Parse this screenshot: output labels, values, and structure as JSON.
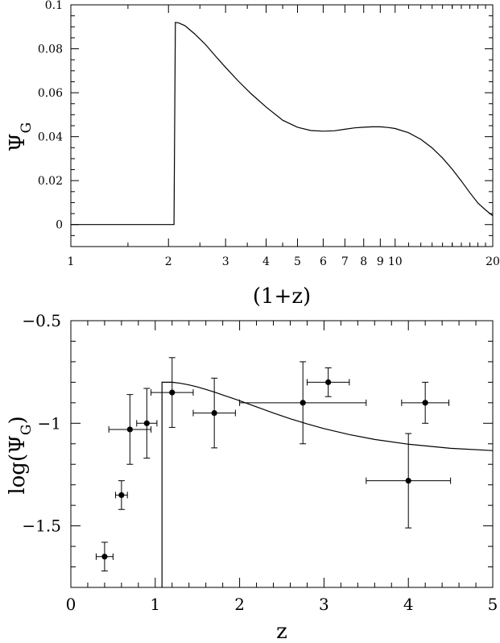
{
  "chart_data": [
    {
      "type": "line",
      "xscale": "log",
      "xlabel": "(1+z)",
      "ylabel_main": "Ψ",
      "ylabel_sub": "G",
      "xlim": [
        1,
        20
      ],
      "ylim": [
        -0.01,
        0.1
      ],
      "xticks_major": [
        1,
        2,
        3,
        4,
        5,
        6,
        7,
        8,
        9,
        10,
        20
      ],
      "xtick_labels": [
        "1",
        "2",
        "3",
        "4",
        "5",
        "6",
        "7",
        "8",
        "9",
        "10",
        "20"
      ],
      "yticks": [
        0,
        0.02,
        0.04,
        0.06,
        0.08,
        0.1
      ],
      "ytick_labels": [
        "0",
        "0.02",
        "0.04",
        "0.06",
        "0.08",
        "0.1"
      ],
      "series": [
        {
          "x": [
            1.0,
            2.08,
            2.1,
            2.15,
            2.25,
            2.4,
            2.6,
            2.8,
            3.0,
            3.3,
            3.6,
            4.0,
            4.5,
            5.0,
            5.5,
            6.0,
            6.5,
            7.0,
            7.5,
            8.0,
            8.5,
            9.0,
            9.5,
            10.0,
            11.0,
            12.0,
            13.0,
            14.0,
            15.0,
            16.0,
            17.0,
            18.0,
            19.0,
            20.0
          ],
          "y": [
            0.0,
            0.0,
            0.092,
            0.0918,
            0.0905,
            0.087,
            0.082,
            0.0765,
            0.0715,
            0.065,
            0.0595,
            0.0535,
            0.0475,
            0.0443,
            0.0428,
            0.0425,
            0.0427,
            0.0434,
            0.044,
            0.0443,
            0.0445,
            0.0445,
            0.0442,
            0.0437,
            0.0418,
            0.0388,
            0.0349,
            0.0303,
            0.0252,
            0.0198,
            0.0145,
            0.0098,
            0.0067,
            0.004
          ]
        }
      ]
    },
    {
      "type": "scatter",
      "xlabel": "z",
      "ylabel_main": "log(Ψ",
      "ylabel_sub": "G",
      "ylabel_close": ")",
      "xlim": [
        0,
        5
      ],
      "ylim": [
        -1.8,
        -0.5
      ],
      "xticks": [
        0,
        1,
        2,
        3,
        4,
        5
      ],
      "xtick_labels": [
        "0",
        "1",
        "2",
        "3",
        "4",
        "5"
      ],
      "yticks": [
        -0.5,
        -1,
        -1.5
      ],
      "ytick_labels": [
        "−0.5",
        "−1",
        "−1.5"
      ],
      "points": [
        {
          "x": 0.4,
          "y": -1.65,
          "xerr": [
            0.1,
            0.1
          ],
          "yerr": [
            0.07,
            0.07
          ]
        },
        {
          "x": 0.6,
          "y": -1.35,
          "xerr": [
            0.07,
            0.07
          ],
          "yerr": [
            0.07,
            0.07
          ]
        },
        {
          "x": 0.7,
          "y": -1.03,
          "xerr": [
            0.25,
            0.25
          ],
          "yerr": [
            0.17,
            0.17
          ]
        },
        {
          "x": 0.9,
          "y": -1.0,
          "xerr": [
            0.12,
            0.12
          ],
          "yerr": [
            0.17,
            0.17
          ]
        },
        {
          "x": 1.2,
          "y": -0.85,
          "xerr": [
            0.25,
            0.25
          ],
          "yerr": [
            0.17,
            0.17
          ]
        },
        {
          "x": 1.7,
          "y": -0.95,
          "xerr": [
            0.25,
            0.25
          ],
          "yerr": [
            0.17,
            0.17
          ]
        },
        {
          "x": 2.75,
          "y": -0.9,
          "xerr": [
            0.75,
            0.75
          ],
          "yerr": [
            0.2,
            0.2
          ]
        },
        {
          "x": 3.05,
          "y": -0.8,
          "xerr": [
            0.25,
            0.25
          ],
          "yerr": [
            0.07,
            0.07
          ]
        },
        {
          "x": 4.0,
          "y": -1.28,
          "xerr": [
            0.5,
            0.5
          ],
          "yerr": [
            0.23,
            0.23
          ]
        },
        {
          "x": 4.2,
          "y": -0.9,
          "xerr": [
            0.28,
            0.28
          ],
          "yerr": [
            0.1,
            0.1
          ]
        }
      ],
      "series": [
        {
          "x": [
            1.08,
            1.08,
            1.1,
            1.2,
            1.3,
            1.4,
            1.5,
            1.6,
            1.7,
            1.8,
            1.9,
            2.0,
            2.2,
            2.4,
            2.6,
            2.8,
            3.0,
            3.3,
            3.6,
            4.0,
            4.5,
            5.0
          ],
          "y": [
            -1.8,
            -0.8,
            -0.8,
            -0.8,
            -0.805,
            -0.813,
            -0.823,
            -0.835,
            -0.848,
            -0.862,
            -0.876,
            -0.89,
            -0.92,
            -0.95,
            -0.978,
            -1.003,
            -1.026,
            -1.055,
            -1.079,
            -1.102,
            -1.122,
            -1.133
          ]
        }
      ]
    }
  ]
}
